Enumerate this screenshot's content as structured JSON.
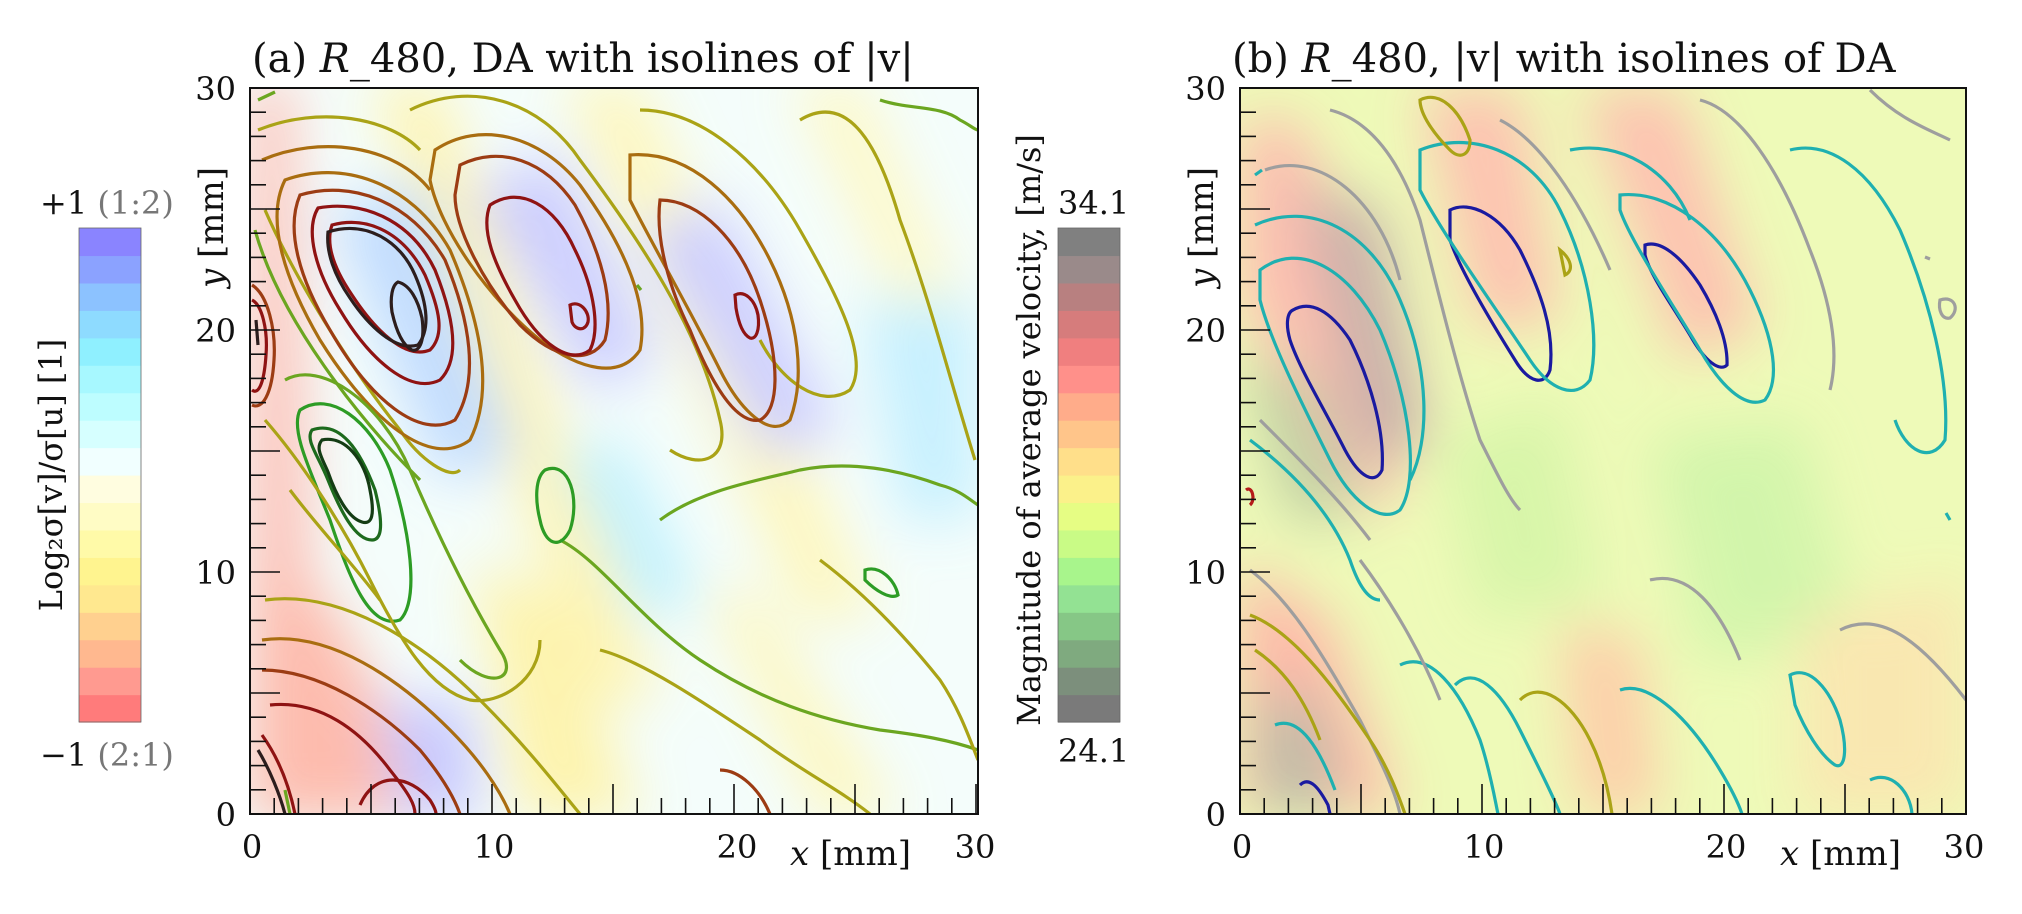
{
  "chart_data": [
    {
      "type": "heatmap",
      "title_prefix": "(a) ",
      "title_math": "R",
      "title_rest": "_480, DA with isolines of |v|",
      "xlabel_var": "x",
      "xlabel_unit": "[mm]",
      "ylabel_var": "y",
      "ylabel_unit": "[mm]",
      "xlim": [
        0,
        30
      ],
      "ylim": [
        0,
        30
      ],
      "x_ticks": [
        "0",
        "10",
        "20",
        "30"
      ],
      "y_ticks": [
        "0",
        "10",
        "20",
        "30"
      ],
      "colorbar": {
        "label": "Log₂σ[v]/σ[u]  [1]",
        "top_value": "+1",
        "top_note": "(1:2)",
        "bottom_value": "−1",
        "bottom_note": "(2:1)",
        "range": [
          -1,
          1
        ],
        "colors": [
          "#ff7b7b",
          "#ff9a90",
          "#ffb88f",
          "#ffd08f",
          "#ffe88f",
          "#fff48f",
          "#fffaa8",
          "#fffcc5",
          "#fffde0",
          "#f1ffff",
          "#d6ffff",
          "#bdfdff",
          "#a7f8ff",
          "#8ff0ff",
          "#8edbff",
          "#8cc2ff",
          "#8ba2ff",
          "#8a84ff"
        ]
      },
      "isolines_of": "|v|",
      "isoline_colors": [
        "#2c1d1d",
        "#8f1313",
        "#9c3c13",
        "#a96d10",
        "#aaa316",
        "#6ba620",
        "#2d9c25",
        "#1d6a1d",
        "#143c14"
      ]
    },
    {
      "type": "heatmap",
      "title_prefix": "(b) ",
      "title_math": "R",
      "title_rest": "_480, |v| with isolines of DA",
      "xlabel_var": "x",
      "xlabel_unit": "[mm]",
      "ylabel_var": "y",
      "ylabel_unit": "[mm]",
      "xlim": [
        0,
        30
      ],
      "ylim": [
        0,
        30
      ],
      "x_ticks": [
        "0",
        "10",
        "20",
        "30"
      ],
      "y_ticks": [
        "0",
        "10",
        "20",
        "30"
      ],
      "colorbar": {
        "label": "Magnitude of average velocity, [m/s]",
        "top_value": "34.1",
        "bottom_value": "24.1",
        "range": [
          24.1,
          34.1
        ],
        "colors": [
          "#7a7a7a",
          "#7c8f7c",
          "#7faa7f",
          "#86c786",
          "#93e293",
          "#a8f58c",
          "#c9fb86",
          "#e6fd84",
          "#fbf18a",
          "#ffdf8a",
          "#ffc58a",
          "#ffac8a",
          "#ff908a",
          "#f07f7f",
          "#d67c7c",
          "#b88080",
          "#9a8a8a",
          "#808080"
        ]
      },
      "isolines_of": "DA",
      "isoline_colors": [
        "#b51a1a",
        "#aaa316",
        "#9e9e9e",
        "#1fb0b0",
        "#1a1aa0"
      ]
    }
  ]
}
